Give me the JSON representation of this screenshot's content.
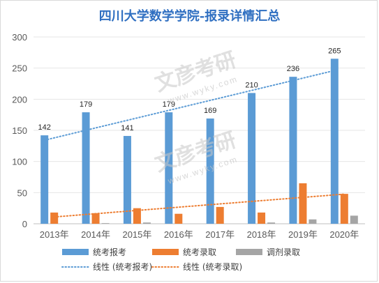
{
  "chart_data": {
    "type": "bar",
    "title": "四川大学数学学院-报录详情汇总",
    "categories": [
      "2013年",
      "2014年",
      "2015年",
      "2016年",
      "2017年",
      "2018年",
      "2019年",
      "2020年"
    ],
    "series": [
      {
        "name": "统考报考",
        "values": [
          142,
          179,
          141,
          179,
          169,
          210,
          236,
          265
        ],
        "color": "#5b9bd5",
        "data_labels": [
          "142",
          "179",
          "141",
          "179",
          "169",
          "210",
          "236",
          "265"
        ]
      },
      {
        "name": "统考录取",
        "values": [
          18,
          17,
          25,
          16,
          27,
          18,
          65,
          48
        ],
        "color": "#ed7d31"
      },
      {
        "name": "调剂录取",
        "values": [
          0,
          1,
          2,
          0,
          0,
          2,
          7,
          13
        ],
        "color": "#a5a5a5"
      }
    ],
    "trendlines": [
      {
        "name": "线性 (统考报考)",
        "type": "linear",
        "of_series": "统考报考",
        "color": "#5b9bd5"
      },
      {
        "name": "线性 (统考录取)",
        "type": "linear",
        "of_series": "统考录取",
        "color": "#ed7d31"
      }
    ],
    "ylim": [
      0,
      300
    ],
    "yticks": [
      "0",
      "50",
      "100",
      "150",
      "200",
      "250",
      "300"
    ],
    "grid": true,
    "legend": "bottom",
    "watermark": {
      "text": "文彦考研",
      "url": "www.wyky.com"
    }
  }
}
